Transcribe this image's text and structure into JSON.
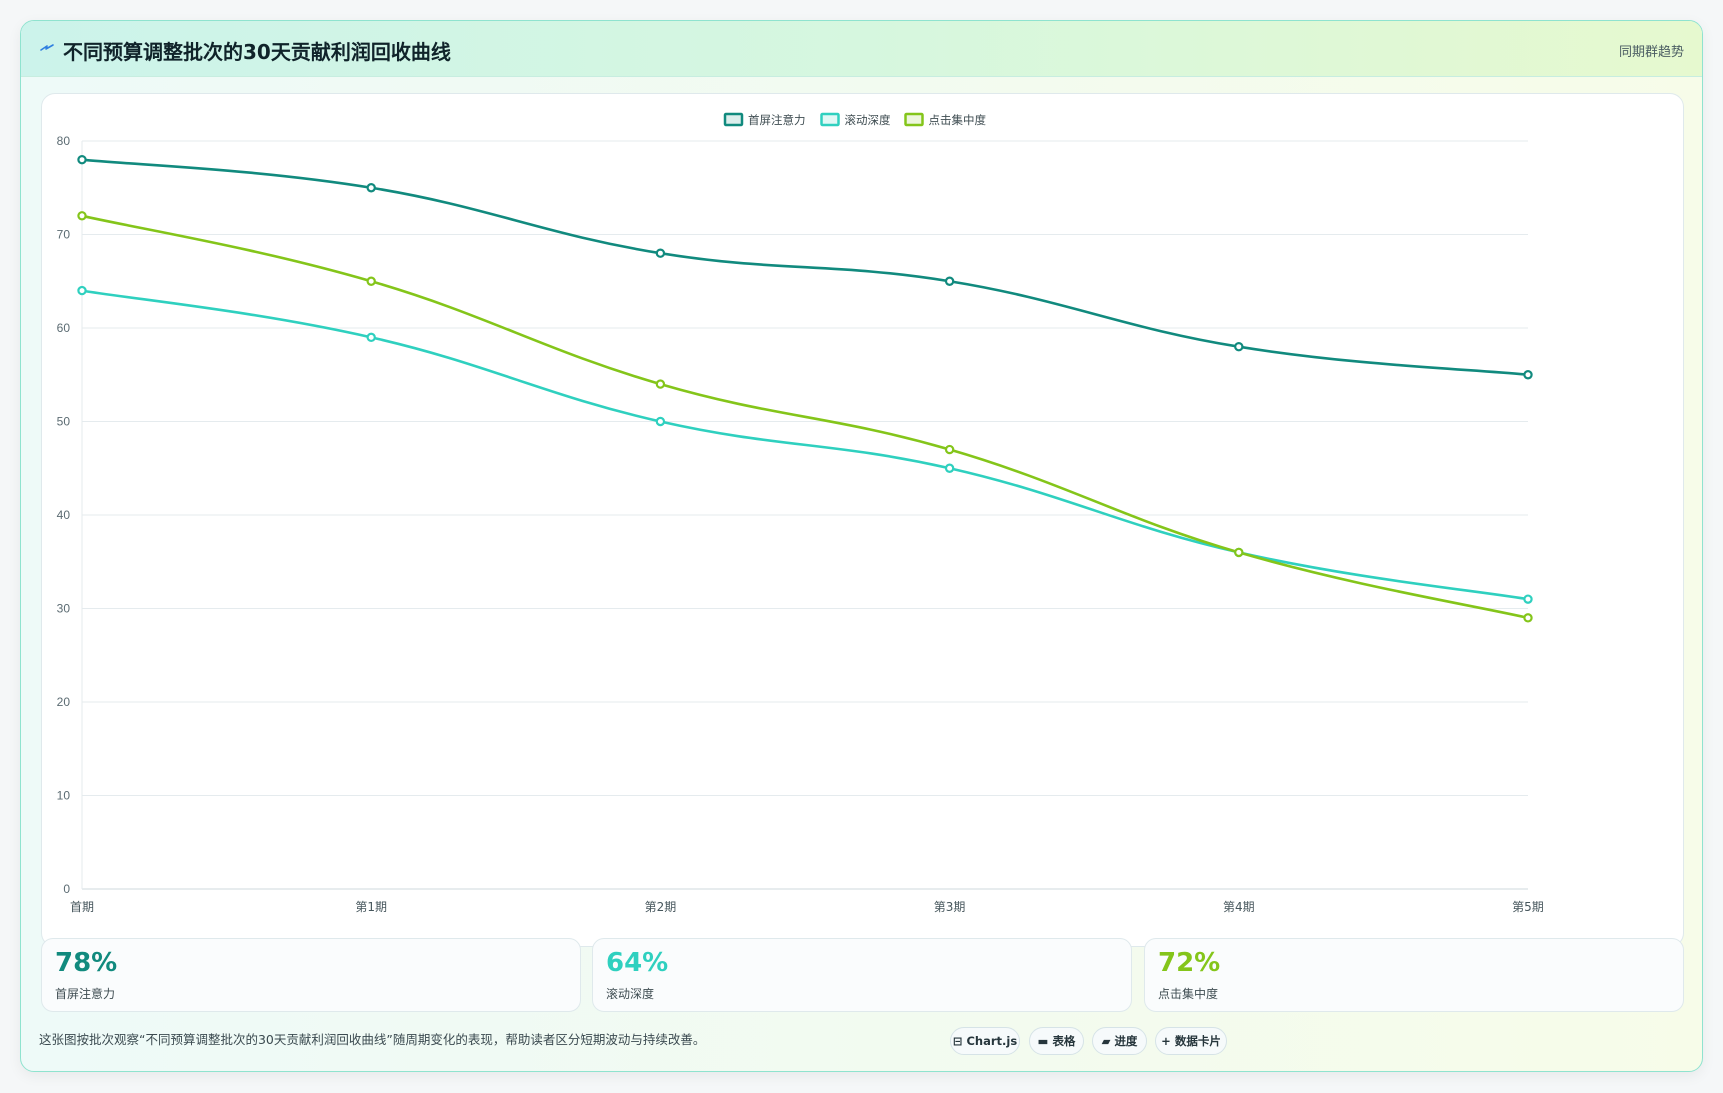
{
  "header": {
    "icon": "spark-icon",
    "title": "不同预算调整批次的30天贡献利润回收曲线",
    "tag": "同期群趋势"
  },
  "chart_data": {
    "type": "line",
    "title": "",
    "xlabel": "",
    "ylabel": "",
    "categories": [
      "首期",
      "第1期",
      "第2期",
      "第3期",
      "第4期",
      "第5期"
    ],
    "ylim": [
      0,
      80
    ],
    "yticks": [
      0,
      10,
      20,
      30,
      40,
      50,
      60,
      70,
      80
    ],
    "grid": true,
    "legend_position": "top-center",
    "series": [
      {
        "name": "首屏注意力",
        "color": "#118a7e",
        "values": [
          78,
          75,
          68,
          65,
          58,
          55
        ]
      },
      {
        "name": "滚动深度",
        "color": "#2fd0bf",
        "values": [
          64,
          59,
          50,
          45,
          36,
          31
        ]
      },
      {
        "name": "点击集中度",
        "color": "#84c51a",
        "values": [
          72,
          65,
          54,
          47,
          36,
          29
        ]
      }
    ]
  },
  "stats": [
    {
      "value": "78%",
      "label": "首屏注意力",
      "color": "#118a7e"
    },
    {
      "value": "64%",
      "label": "滚动深度",
      "color": "#2fd0bf"
    },
    {
      "value": "72%",
      "label": "点击集中度",
      "color": "#84c51a"
    }
  ],
  "footer": {
    "description": "这张图按批次观察“不同预算调整批次的30天贡献利润回收曲线”随周期变化的表现，帮助读者区分短期波动与持续改善。",
    "chips": [
      {
        "icon": "chart-icon",
        "label": "Chart.js"
      },
      {
        "icon": "table-icon",
        "label": "表格"
      },
      {
        "icon": "progress-icon",
        "label": "进度"
      },
      {
        "icon": "plus-icon",
        "label": "数据卡片"
      }
    ]
  }
}
